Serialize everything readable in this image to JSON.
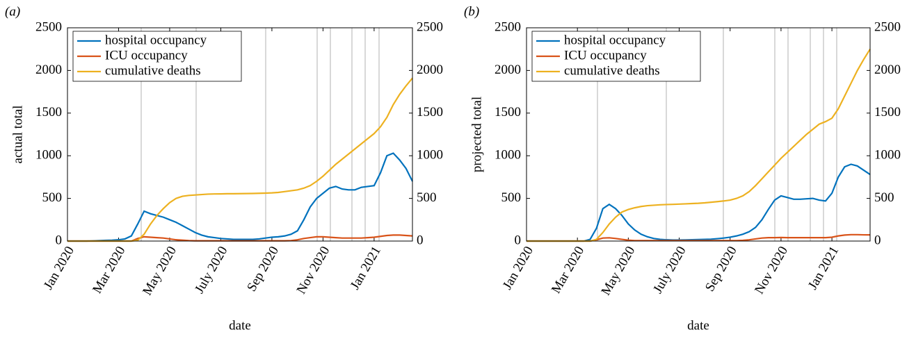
{
  "chart_data": [
    {
      "type": "line",
      "label": "(a)",
      "ylabel": "actual total",
      "xlabel": "date",
      "legend": "northwest",
      "categories": [
        "Jan 2020",
        null,
        null,
        null,
        null,
        null,
        null,
        null,
        "Mar 2020",
        null,
        null,
        null,
        null,
        null,
        null,
        null,
        "May 2020",
        null,
        null,
        null,
        null,
        null,
        null,
        null,
        "July 2020",
        null,
        null,
        null,
        null,
        null,
        null,
        null,
        "Sep 2020",
        null,
        null,
        null,
        null,
        null,
        null,
        null,
        "Nov 2020",
        null,
        null,
        null,
        null,
        null,
        null,
        null,
        "Jan 2021",
        null,
        null,
        null,
        null,
        null,
        null
      ],
      "ylim": [
        0,
        2500
      ],
      "yticks": [
        0,
        500,
        1000,
        1500,
        2000,
        2500
      ],
      "y2lim": [
        0,
        2500
      ],
      "y2ticks": [
        0,
        500,
        1000,
        1500,
        2000,
        2500
      ],
      "series": [
        {
          "name": "hospital occupancy",
          "color": "#0072bd",
          "values": [
            0,
            0,
            0,
            0,
            2,
            5,
            8,
            10,
            15,
            25,
            60,
            200,
            350,
            320,
            300,
            280,
            250,
            220,
            180,
            140,
            100,
            70,
            50,
            40,
            30,
            25,
            20,
            20,
            20,
            20,
            25,
            35,
            45,
            50,
            60,
            80,
            120,
            250,
            400,
            500,
            560,
            620,
            640,
            610,
            600,
            600,
            630,
            640,
            650,
            800,
            1000,
            1030,
            950,
            850,
            700
          ]
        },
        {
          "name": "ICU occupancy",
          "color": "#d95319",
          "values": [
            0,
            0,
            0,
            0,
            0,
            0,
            0,
            0,
            0,
            0,
            0,
            30,
            50,
            45,
            40,
            35,
            25,
            15,
            10,
            5,
            3,
            3,
            3,
            3,
            3,
            3,
            3,
            3,
            3,
            3,
            3,
            3,
            3,
            3,
            3,
            5,
            15,
            30,
            40,
            50,
            50,
            45,
            40,
            35,
            35,
            35,
            35,
            40,
            45,
            55,
            65,
            70,
            70,
            65,
            60
          ]
        },
        {
          "name": "cumulative deaths",
          "color": "#edb120",
          "values": [
            0,
            0,
            0,
            0,
            0,
            0,
            0,
            0,
            0,
            0,
            0,
            10,
            80,
            200,
            300,
            380,
            450,
            500,
            525,
            535,
            540,
            545,
            550,
            552,
            553,
            555,
            555,
            556,
            557,
            558,
            560,
            562,
            565,
            570,
            580,
            590,
            600,
            620,
            650,
            700,
            760,
            830,
            900,
            960,
            1020,
            1080,
            1140,
            1200,
            1260,
            1340,
            1450,
            1600,
            1720,
            1820,
            1910
          ]
        }
      ]
    },
    {
      "type": "line",
      "label": "(b)",
      "ylabel": "projected total",
      "xlabel": "date",
      "legend": "northwest",
      "categories": [
        "Jan 2020",
        null,
        null,
        null,
        null,
        null,
        null,
        null,
        "Mar 2020",
        null,
        null,
        null,
        null,
        null,
        null,
        null,
        "May 2020",
        null,
        null,
        null,
        null,
        null,
        null,
        null,
        "July 2020",
        null,
        null,
        null,
        null,
        null,
        null,
        null,
        "Sep 2020",
        null,
        null,
        null,
        null,
        null,
        null,
        null,
        "Nov 2020",
        null,
        null,
        null,
        null,
        null,
        null,
        null,
        "Jan 2021",
        null,
        null,
        null,
        null,
        null,
        null
      ],
      "ylim": [
        0,
        2500
      ],
      "yticks": [
        0,
        500,
        1000,
        1500,
        2000,
        2500
      ],
      "y2lim": [
        0,
        2500
      ],
      "y2ticks": [
        0,
        500,
        1000,
        1500,
        2000,
        2500
      ],
      "series": [
        {
          "name": "hospital occupancy",
          "color": "#0072bd",
          "values": [
            0,
            0,
            0,
            0,
            0,
            0,
            0,
            0,
            0,
            0,
            20,
            150,
            380,
            430,
            380,
            300,
            200,
            130,
            80,
            50,
            30,
            20,
            15,
            12,
            12,
            13,
            15,
            18,
            20,
            22,
            28,
            35,
            45,
            60,
            80,
            110,
            160,
            250,
            370,
            480,
            530,
            510,
            490,
            490,
            495,
            500,
            480,
            470,
            560,
            750,
            870,
            900,
            880,
            830,
            780
          ]
        },
        {
          "name": "ICU occupancy",
          "color": "#d95319",
          "values": [
            0,
            0,
            0,
            0,
            0,
            0,
            0,
            0,
            0,
            0,
            0,
            15,
            35,
            38,
            30,
            20,
            10,
            5,
            5,
            5,
            5,
            5,
            5,
            5,
            5,
            5,
            5,
            5,
            5,
            5,
            5,
            5,
            5,
            5,
            8,
            15,
            25,
            35,
            40,
            40,
            42,
            40,
            40,
            40,
            40,
            40,
            40,
            40,
            45,
            60,
            70,
            75,
            75,
            73,
            72
          ]
        },
        {
          "name": "cumulative deaths",
          "color": "#edb120",
          "values": [
            0,
            0,
            0,
            0,
            0,
            0,
            0,
            0,
            0,
            0,
            0,
            20,
            100,
            200,
            280,
            340,
            370,
            390,
            405,
            415,
            420,
            425,
            428,
            430,
            433,
            436,
            440,
            443,
            448,
            455,
            462,
            470,
            480,
            500,
            530,
            580,
            650,
            730,
            810,
            890,
            970,
            1040,
            1110,
            1180,
            1250,
            1310,
            1370,
            1400,
            1440,
            1550,
            1700,
            1850,
            2000,
            2130,
            2250
          ]
        }
      ]
    }
  ]
}
